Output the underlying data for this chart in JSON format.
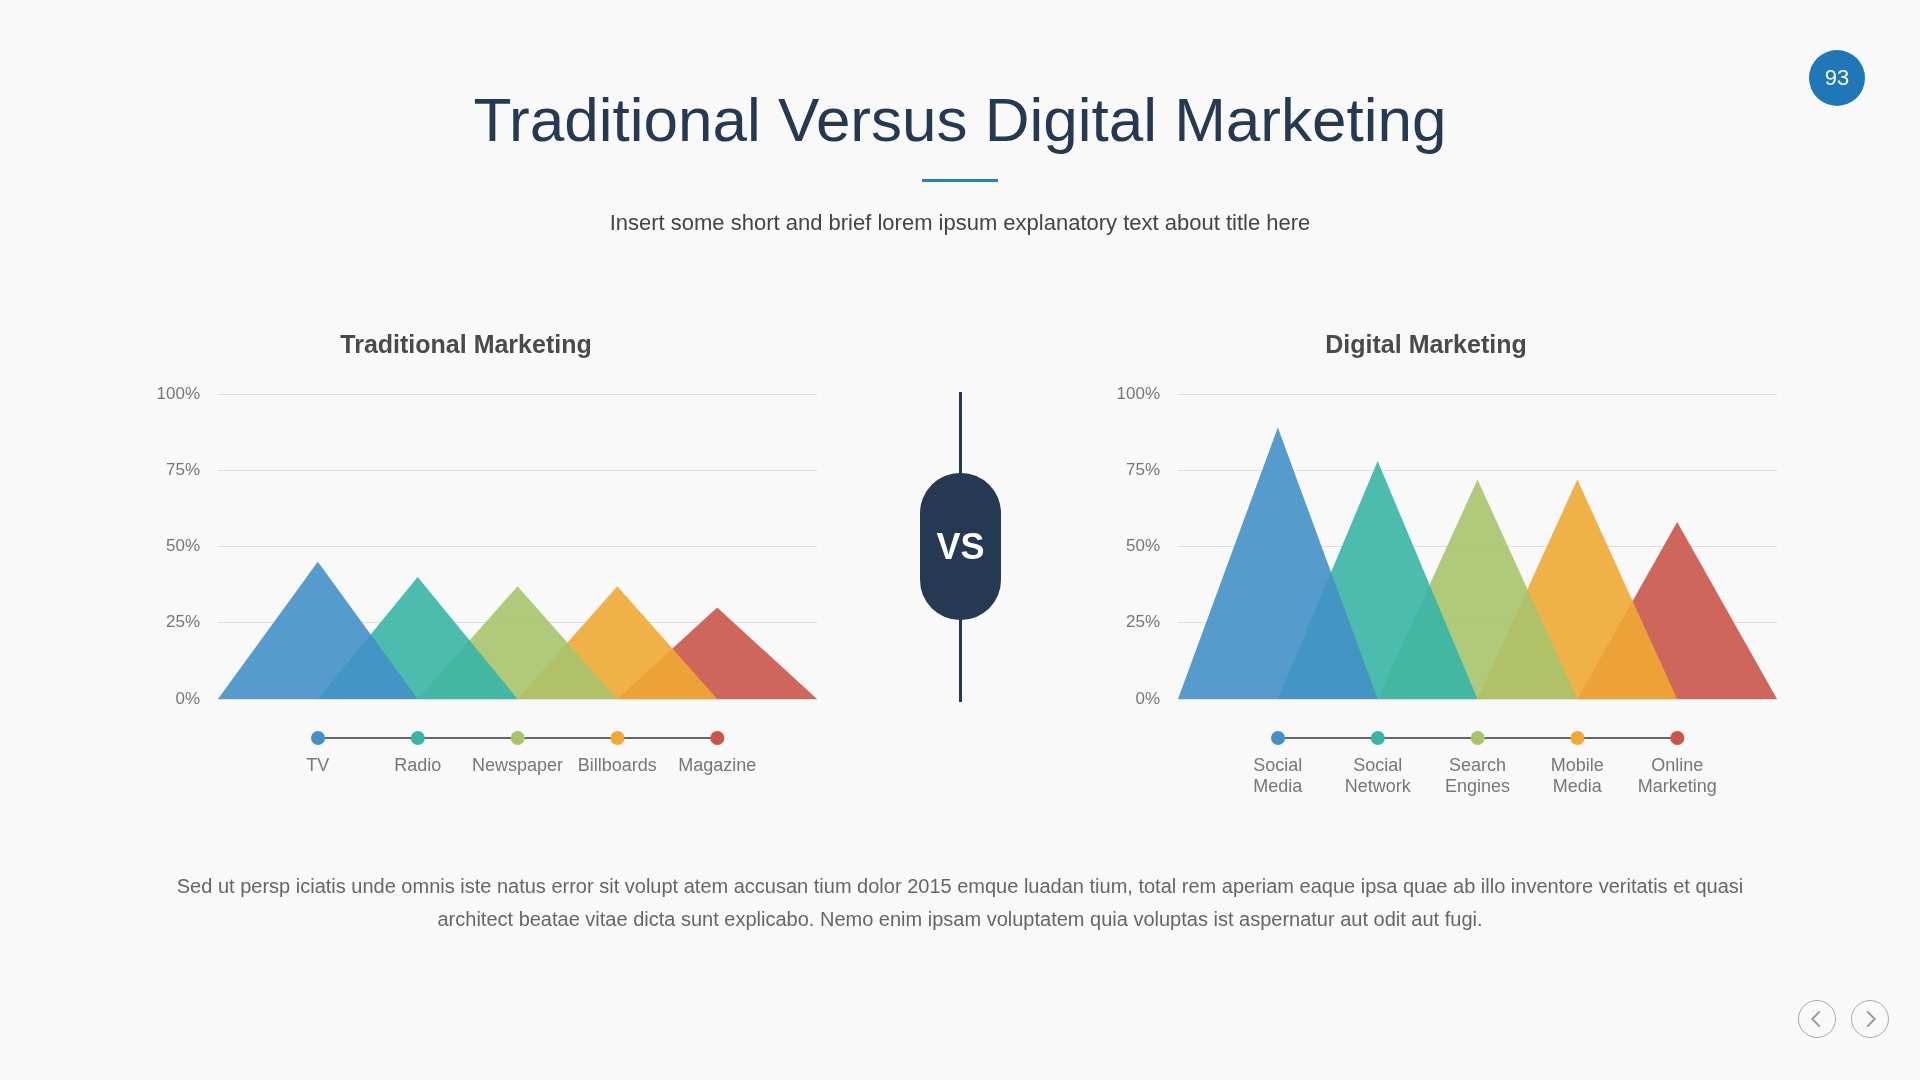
{
  "chart_data": [
    {
      "type": "area",
      "title": "Traditional Marketing",
      "categories": [
        null,
        "TV",
        "Radio",
        "Newspaper",
        "Billboards",
        "Magazine",
        null
      ],
      "series": [
        {
          "color": "#4390c6",
          "values": [
            0,
            45,
            0,
            null,
            null,
            null,
            null
          ]
        },
        {
          "color": "#37b5a5",
          "values": [
            null,
            0,
            40,
            0,
            null,
            null,
            null
          ]
        },
        {
          "color": "#a9c36b",
          "values": [
            null,
            null,
            0,
            37,
            0,
            null,
            null
          ]
        },
        {
          "color": "#f0a935",
          "values": [
            null,
            null,
            null,
            0,
            37,
            0,
            null
          ]
        },
        {
          "color": "#c9554a",
          "values": [
            null,
            null,
            null,
            null,
            0,
            30,
            0
          ]
        }
      ],
      "ylim": [
        0,
        100
      ],
      "yticks": [
        {
          "value": 0,
          "label": "0%"
        },
        {
          "value": 25,
          "label": "25%"
        },
        {
          "value": 50,
          "label": "50%"
        },
        {
          "value": 75,
          "label": "75%"
        },
        {
          "value": 100,
          "label": "100%"
        }
      ],
      "grid": "y",
      "legend": false,
      "annotations": [
        "Traditional Versus Digital Marketing",
        "Insert some short and brief lorem ipsum explanatory text about title here",
        "Sed ut persp iciatis unde omnis iste natus error sit volupt atem accusan tium dolor 2015 emque luadan tium, total rem aperiam eaque ipsa quae ab illo inventore veritatis et quasi architect beatae vitae dicta sunt explicabo. Nemo enim ipsam voluptatem quia voluptas ist aspernatur aut odit aut fugi."
      ]
    },
    {
      "type": "area",
      "title": "Digital Marketing",
      "categories": [
        null,
        "Social Media",
        "Social Network",
        "Search Engines",
        "Mobile Media",
        "Online Marketing",
        null
      ],
      "series": [
        {
          "color": "#4390c6",
          "values": [
            0,
            89,
            0,
            null,
            null,
            null,
            null
          ]
        },
        {
          "color": "#37b5a5",
          "values": [
            null,
            0,
            78,
            0,
            null,
            null,
            null
          ]
        },
        {
          "color": "#a9c36b",
          "values": [
            null,
            null,
            0,
            72,
            0,
            null,
            null
          ]
        },
        {
          "color": "#f0a935",
          "values": [
            null,
            null,
            null,
            0,
            72,
            0,
            null
          ]
        },
        {
          "color": "#c9554a",
          "values": [
            null,
            null,
            null,
            null,
            0,
            58,
            0
          ]
        }
      ],
      "ylim": [
        0,
        100
      ],
      "yticks": [
        {
          "value": 0,
          "label": "0%"
        },
        {
          "value": 25,
          "label": "25%"
        },
        {
          "value": 50,
          "label": "50%"
        },
        {
          "value": 75,
          "label": "75%"
        },
        {
          "value": 100,
          "label": "100%"
        }
      ],
      "grid": "y",
      "legend": false,
      "annotations": [
        "VS",
        "93"
      ]
    }
  ]
}
